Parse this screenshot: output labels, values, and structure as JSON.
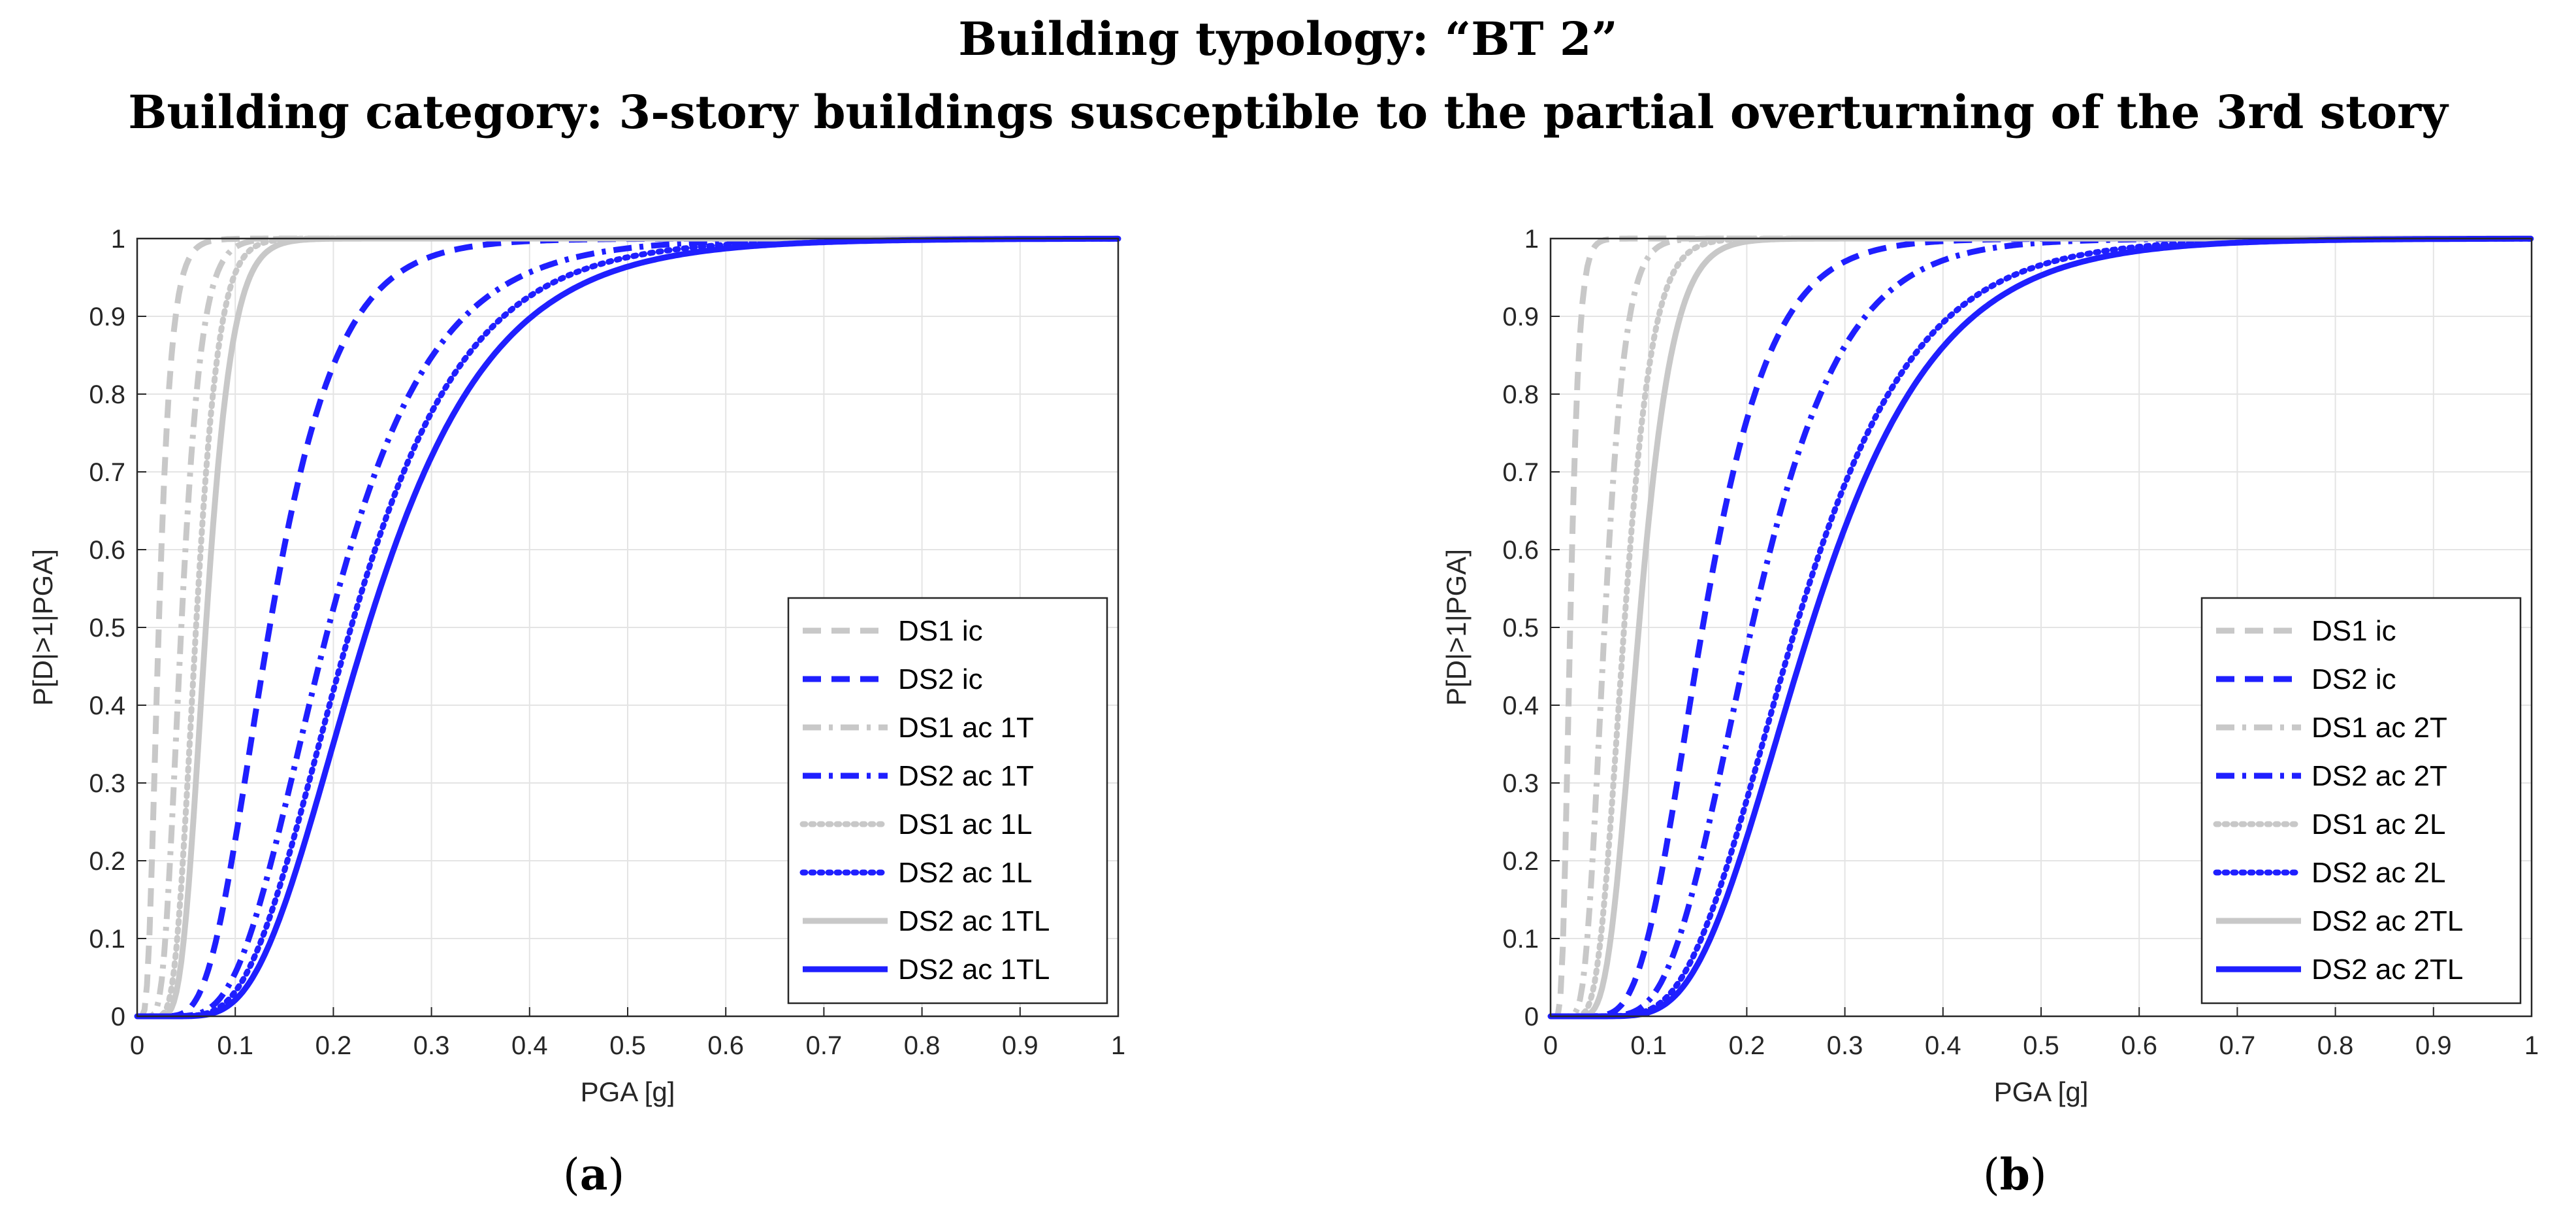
{
  "header": {
    "title": "Building typology: “BT 2”",
    "subtitle": "Building category: 3-story buildings susceptible to the partial overturning of the 3rd story"
  },
  "captions": {
    "a_letter": "a",
    "b_letter": "b"
  },
  "colors": {
    "blue": "#1f1fff",
    "gray": "#c8c8c8"
  },
  "chart_data": [
    {
      "type": "line",
      "panel": "a",
      "xlabel": "PGA [g]",
      "ylabel": "P[D|>1|PGA]",
      "xlim": [
        0,
        1
      ],
      "ylim": [
        0,
        1
      ],
      "xticks": [
        "0",
        "0.1",
        "0.2",
        "0.3",
        "0.4",
        "0.5",
        "0.6",
        "0.7",
        "0.8",
        "0.9",
        "1"
      ],
      "yticks": [
        "0",
        "0.1",
        "0.2",
        "0.3",
        "0.4",
        "0.5",
        "0.6",
        "0.7",
        "0.8",
        "0.9",
        "1"
      ],
      "grid": true,
      "legend_position": "bottom-right",
      "series": [
        {
          "name": "DS1 ic",
          "color": "#c8c8c8",
          "style": "dashed",
          "median": 0.022,
          "beta": 0.45
        },
        {
          "name": "DS2 ic",
          "color": "#1f1fff",
          "style": "dashed",
          "median": 0.135,
          "beta": 0.4
        },
        {
          "name": "DS1 ac 1T",
          "color": "#c8c8c8",
          "style": "dashdot",
          "median": 0.045,
          "beta": 0.35
        },
        {
          "name": "DS2 ac 1T",
          "color": "#1f1fff",
          "style": "dashdot",
          "median": 0.195,
          "beta": 0.42
        },
        {
          "name": "DS1 ac 1L",
          "color": "#c8c8c8",
          "style": "dotted",
          "median": 0.06,
          "beta": 0.3
        },
        {
          "name": "DS2 ac 1L",
          "color": "#1f1fff",
          "style": "dotted",
          "median": 0.218,
          "beta": 0.42
        },
        {
          "name": "DS2 ac 1TL",
          "color": "#c8c8c8",
          "style": "solid",
          "median": 0.07,
          "beta": 0.3
        },
        {
          "name": "DS2 ac 1TL",
          "color": "#1f1fff",
          "style": "solid",
          "median": 0.235,
          "beta": 0.42
        }
      ]
    },
    {
      "type": "line",
      "panel": "b",
      "xlabel": "PGA [g]",
      "ylabel": "P[D|>1|PGA]",
      "xlim": [
        0,
        1
      ],
      "ylim": [
        0,
        1
      ],
      "xticks": [
        "0",
        "0.1",
        "0.2",
        "0.3",
        "0.4",
        "0.5",
        "0.6",
        "0.7",
        "0.8",
        "0.9",
        "1"
      ],
      "yticks": [
        "0",
        "0.1",
        "0.2",
        "0.3",
        "0.4",
        "0.5",
        "0.6",
        "0.7",
        "0.8",
        "0.9",
        "1"
      ],
      "grid": true,
      "legend_position": "bottom-right",
      "series": [
        {
          "name": "DS1 ic",
          "color": "#c8c8c8",
          "style": "dashed",
          "median": 0.02,
          "beta": 0.35
        },
        {
          "name": "DS2 ic",
          "color": "#1f1fff",
          "style": "dashed",
          "median": 0.155,
          "beta": 0.35
        },
        {
          "name": "DS1 ac 2T",
          "color": "#c8c8c8",
          "style": "dashdot",
          "median": 0.055,
          "beta": 0.3
        },
        {
          "name": "DS2 ac 2T",
          "color": "#1f1fff",
          "style": "dashdot",
          "median": 0.205,
          "beta": 0.35
        },
        {
          "name": "DS1 ac 2L",
          "color": "#c8c8c8",
          "style": "dotted",
          "median": 0.075,
          "beta": 0.3
        },
        {
          "name": "DS2 ac 2L",
          "color": "#1f1fff",
          "style": "dotted",
          "median": 0.25,
          "beta": 0.38
        },
        {
          "name": "DS2 ac 2TL",
          "color": "#c8c8c8",
          "style": "solid",
          "median": 0.09,
          "beta": 0.3
        },
        {
          "name": "DS2 ac 2TL",
          "color": "#1f1fff",
          "style": "solid",
          "median": 0.265,
          "beta": 0.38
        }
      ]
    }
  ]
}
